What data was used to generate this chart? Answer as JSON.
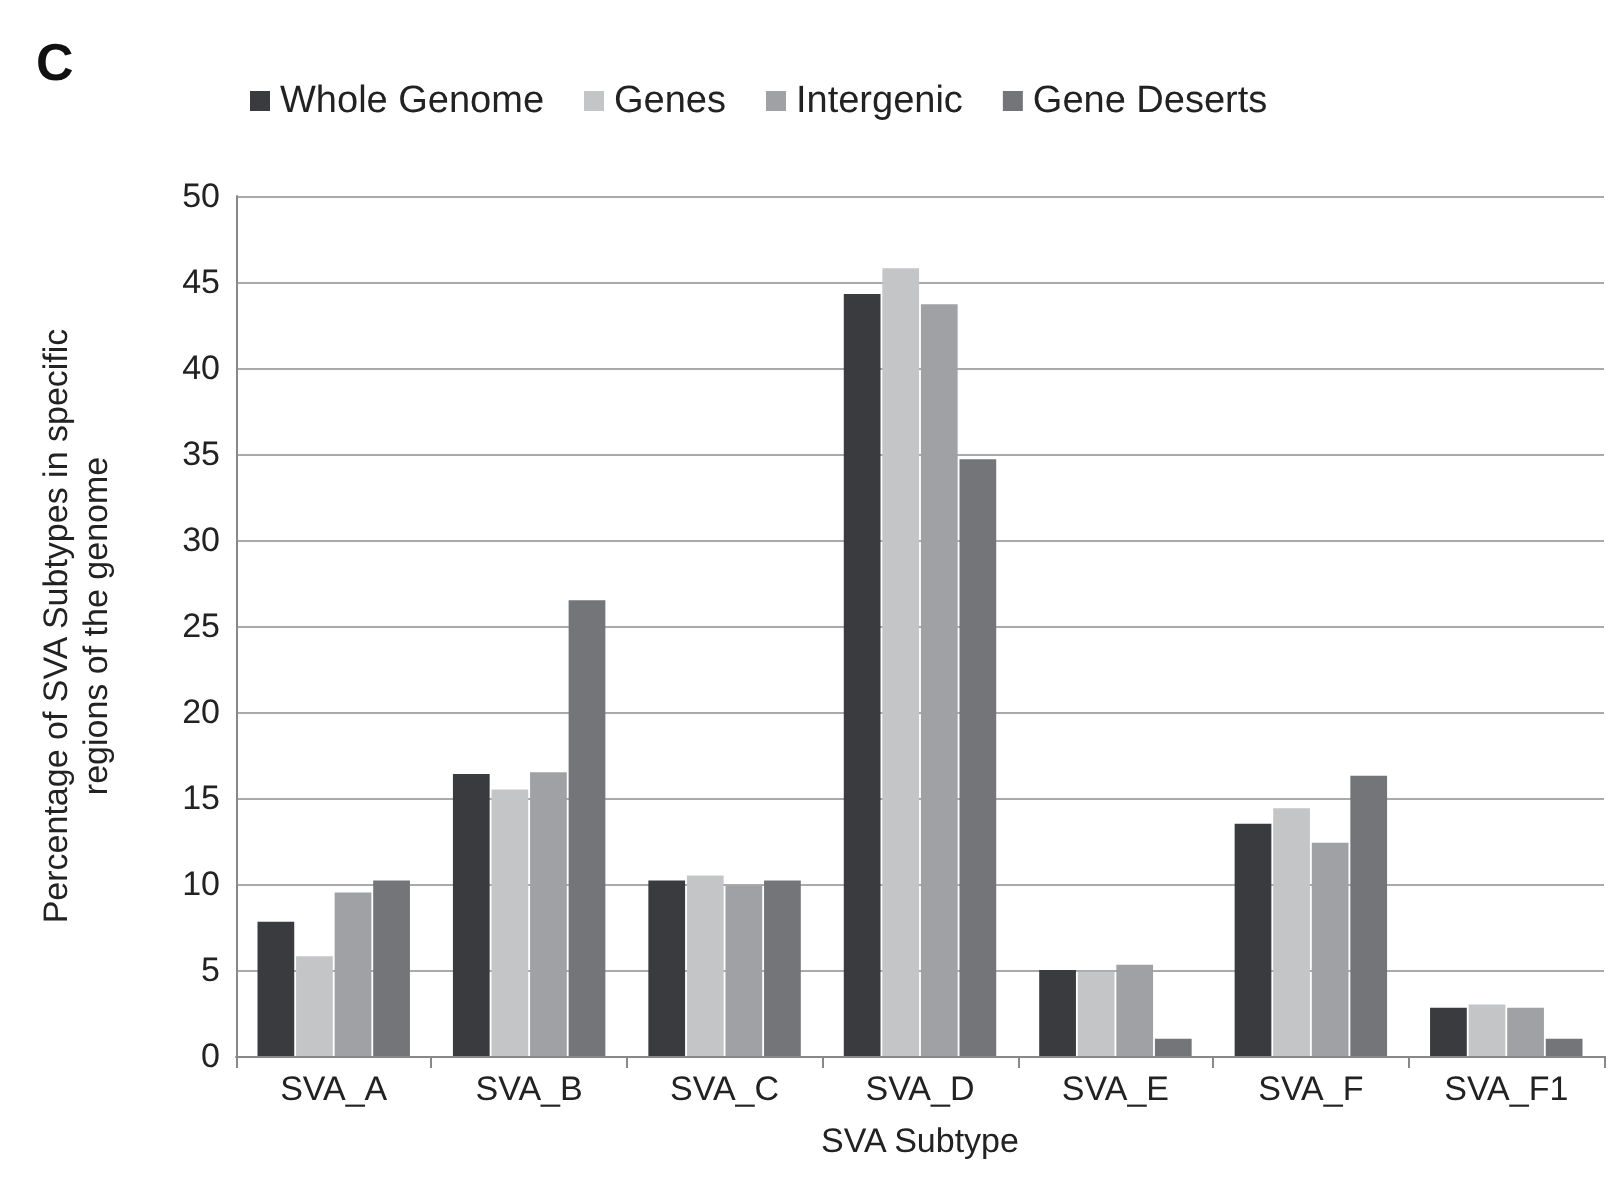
{
  "chart_data": {
    "type": "bar",
    "annotations": [
      "C"
    ],
    "xlabel": "SVA Subtype",
    "ylabel": "Percentage of SVA Subtypes in specific\nregions of the genome",
    "categories": [
      "SVA_A",
      "SVA_B",
      "SVA_C",
      "SVA_D",
      "SVA_E",
      "SVA_F",
      "SVA_F1"
    ],
    "series": [
      {
        "name": "Whole Genome",
        "color": "#3a3b3f",
        "values": [
          7.8,
          16.4,
          10.2,
          44.3,
          5.0,
          13.5,
          2.8
        ]
      },
      {
        "name": "Genes",
        "color": "#c4c5c7",
        "values": [
          5.8,
          15.5,
          10.5,
          45.8,
          4.9,
          14.4,
          3.0
        ]
      },
      {
        "name": "Intergenic",
        "color": "#a0a1a4",
        "values": [
          9.5,
          16.5,
          9.9,
          43.7,
          5.3,
          12.4,
          2.8
        ]
      },
      {
        "name": "Gene Deserts",
        "color": "#747579",
        "values": [
          10.2,
          26.5,
          10.2,
          34.7,
          1.0,
          16.3,
          1.0
        ]
      }
    ],
    "ylim": [
      0,
      50
    ],
    "yticks": [
      0,
      5,
      10,
      15,
      20,
      25,
      30,
      35,
      40,
      45,
      50
    ],
    "grid": "y",
    "legend": "top"
  }
}
